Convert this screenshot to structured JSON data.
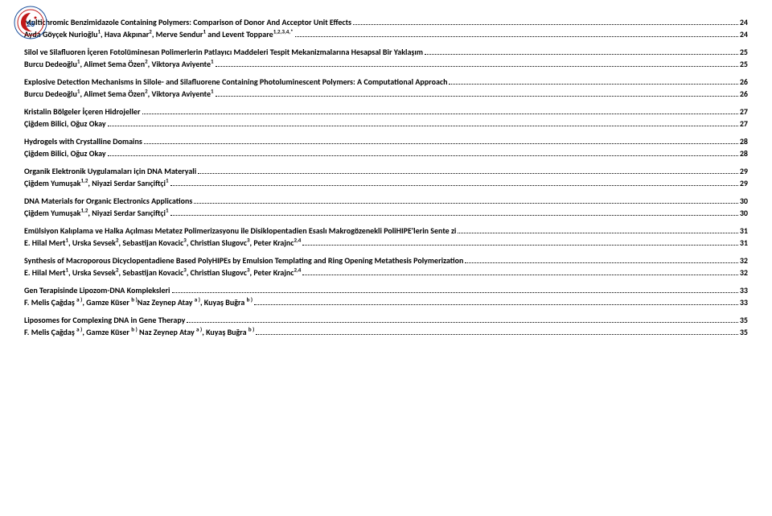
{
  "entries": [
    {
      "kind": "title",
      "text": "Multichromic Benzimidazole Containing Polymers: Comparison of Donor And Acceptor Unit Effects",
      "page": "24"
    },
    {
      "kind": "author",
      "html": "Ayda Göyçek Nurioğlu<sup>1</sup>, Hava Akpınar<sup>2</sup>, Merve Sendur<sup>1</sup> and Levent Toppare<sup>1,2,3,4,*</sup>",
      "page": "24"
    },
    {
      "kind": "title",
      "text": "Silol ve Silafluoren İçeren Fotolüminesan Polimerlerin Patlayıcı Maddeleri Tespit Mekanizmalarına Hesapsal Bir Yaklaşım",
      "page": "25"
    },
    {
      "kind": "author",
      "html": "Burcu Dedeoğlu<sup>1</sup>, Alimet Sema Özen<sup>2</sup>, Viktorya Aviyente<sup>1</sup>",
      "page": "25"
    },
    {
      "kind": "title",
      "text": "Explosive Detection Mechanisms in Silole- and Silafluorene Containing Photoluminescent Polymers: A Computational Approach",
      "page": "26"
    },
    {
      "kind": "author",
      "html": "Burcu Dedeoğlu<sup>1</sup>, Alimet Sema Özen<sup>2</sup>, Viktorya Aviyente<sup>1</sup>",
      "page": "26"
    },
    {
      "kind": "title",
      "text": "Kristalin Bölgeler İçeren Hidrojeller",
      "page": "27"
    },
    {
      "kind": "author",
      "html": "Çiğdem Bilici, Oğuz Okay",
      "page": "27"
    },
    {
      "kind": "title",
      "text": "Hydrogels with Crystalline Domains",
      "page": "28"
    },
    {
      "kind": "author",
      "html": "Çiğdem Bilici, Oğuz Okay",
      "page": "28"
    },
    {
      "kind": "title",
      "text": "Organik Elektronik Uygulamaları için DNA Materyali",
      "page": "29"
    },
    {
      "kind": "author",
      "html": "Çiğdem Yumuşak<sup>1,2</sup>, Niyazi Serdar Sarıçiftçi<sup>1</sup>",
      "page": "29"
    },
    {
      "kind": "title",
      "text": "DNA Materials for Organic Electronics Applications",
      "page": "30"
    },
    {
      "kind": "author",
      "html": "Çiğdem Yumuşak<sup>1,2</sup>, Niyazi Serdar Sarıçiftçi<sup>1</sup>",
      "page": "30"
    },
    {
      "kind": "title",
      "text": "Emülsiyon Kalıplama ve Halka Açılması Metatez Polimerizasyonu ile Disiklopentadien Esaslı Makrogözenekli PoliHIPE'lerin Sente zi",
      "page": "31"
    },
    {
      "kind": "author",
      "html": "E. Hilal Mert<sup>1</sup>, Urska Sevsek<sup>2</sup>, Sebastijan Kovacic<sup>3</sup>, Christian Slugovc<sup>3</sup>, Peter Krajnc<sup>2,4</sup>",
      "page": "31"
    },
    {
      "kind": "title",
      "text": "Synthesis of Macroporous Dicyclopentadiene Based PolyHIPEs by Emulsion Templating and Ring Opening Metathesis Polymerization",
      "page": "32"
    },
    {
      "kind": "author",
      "html": "E. Hilal Mert<sup>1</sup>, Urska Sevsek<sup>2</sup>, Sebastijan Kovacic<sup>3</sup>, Christian Slugovc<sup>3</sup>, Peter Krajnc<sup>2,4</sup>",
      "page": "32"
    },
    {
      "kind": "title",
      "text": "Gen Terapisinde Lipozom-DNA Kompleksleri",
      "page": "33"
    },
    {
      "kind": "author",
      "html": "F. Melis Çağdaş <sup>a )</sup>, Gamze Küser <sup>b )</sup>Naz Zeynep Atay <sup>a )</sup>, Kuyaş Buğra <sup>b )</sup>",
      "page": "33"
    },
    {
      "kind": "title",
      "text": "Liposomes for Complexing DNA in Gene Therapy",
      "page": "35"
    },
    {
      "kind": "author",
      "html": "F. Melis Çağdaş <sup>a )</sup>, Gamze Küser <sup>b )</sup> Naz Zeynep Atay <sup>a )</sup>, Kuyaş Buğra <sup>b )</sup>",
      "page": "35"
    }
  ]
}
